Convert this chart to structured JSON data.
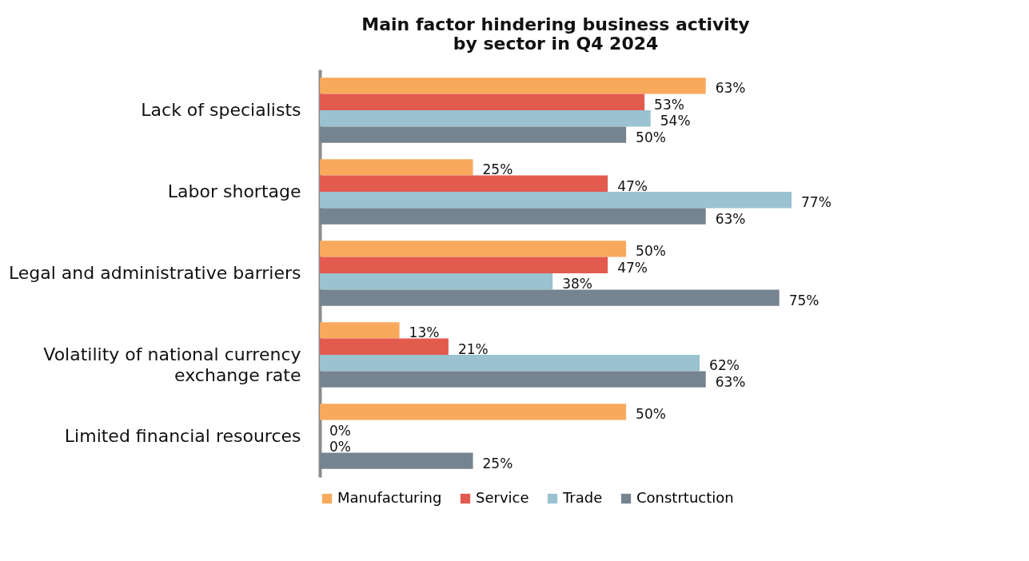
{
  "chart_data": {
    "type": "bar",
    "orientation": "horizontal",
    "title": "Main factor hindering business activity\nby sector in Q4 2024",
    "categories": [
      "Lack of specialists",
      "Labor shortage",
      "Legal and administrative barriers",
      "Volatility of national currency\nexchange rate",
      "Limited financial resources"
    ],
    "series": [
      {
        "name": "Manufacturing",
        "color": "#f9a95c",
        "values": [
          63,
          25,
          50,
          13,
          50
        ],
        "value_labels": [
          "63%",
          "25%",
          "50%",
          "13%",
          "50%"
        ]
      },
      {
        "name": "Service",
        "color": "#e35a4f",
        "values": [
          53,
          47,
          47,
          21,
          0
        ],
        "value_labels": [
          "53%",
          "47%",
          "47%",
          "21%",
          "0%"
        ]
      },
      {
        "name": "Trade",
        "color": "#9ac2d1",
        "values": [
          54,
          77,
          38,
          62,
          0
        ],
        "value_labels": [
          "54%",
          "77%",
          "38%",
          "62%",
          "0%"
        ]
      },
      {
        "name": "Constrtuction",
        "color": "#768390",
        "values": [
          50,
          63,
          75,
          63,
          25
        ],
        "value_labels": [
          "50%",
          "63%",
          "75%",
          "63%",
          "25%"
        ]
      }
    ],
    "tick_labels": "y",
    "grid": false,
    "legend": "bottom"
  }
}
